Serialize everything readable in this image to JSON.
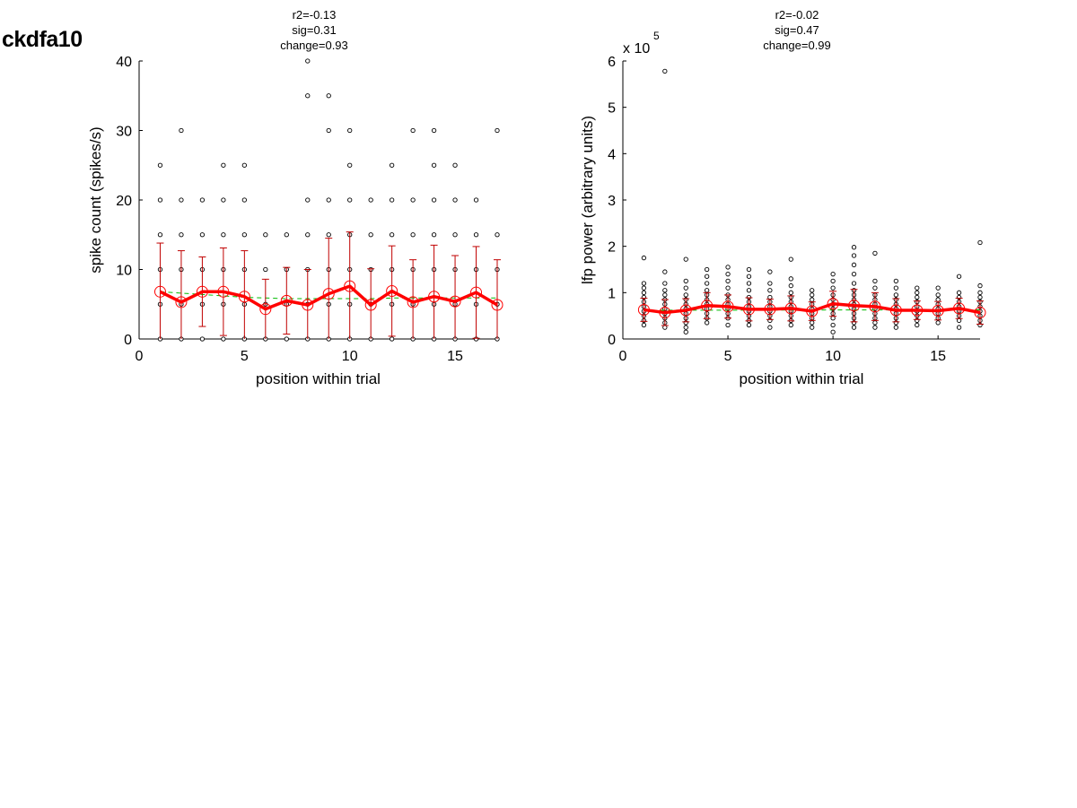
{
  "figure": {
    "title": "ckdfa10"
  },
  "colors": {
    "points": "#000000",
    "mean": "#ff0000",
    "errorbars": "#c00000",
    "fit": "#00bb00"
  },
  "chart_data": [
    {
      "type": "scatter",
      "stats": [
        "r2=-0.13",
        "sig=0.31",
        "change=0.93"
      ],
      "xlabel": "position within trial",
      "ylabel": "spike count (spikes/s)",
      "xlim": [
        0,
        17
      ],
      "ylim": [
        0,
        40
      ],
      "xticks": [
        "0",
        "5",
        "10",
        "15"
      ],
      "xtick_values": [
        0,
        5,
        10,
        15
      ],
      "yticks": [
        "0",
        "10",
        "20",
        "30",
        "40"
      ],
      "ytick_values": [
        0,
        10,
        20,
        30,
        40
      ],
      "y_exponent": "",
      "raw_points": [
        [
          1,
          0
        ],
        [
          1,
          5
        ],
        [
          1,
          10
        ],
        [
          1,
          15
        ],
        [
          1,
          20
        ],
        [
          1,
          25
        ],
        [
          2,
          0
        ],
        [
          2,
          5
        ],
        [
          2,
          10
        ],
        [
          2,
          15
        ],
        [
          2,
          20
        ],
        [
          2,
          30
        ],
        [
          3,
          0
        ],
        [
          3,
          5
        ],
        [
          3,
          10
        ],
        [
          3,
          15
        ],
        [
          3,
          20
        ],
        [
          4,
          0
        ],
        [
          4,
          5
        ],
        [
          4,
          10
        ],
        [
          4,
          15
        ],
        [
          4,
          20
        ],
        [
          4,
          25
        ],
        [
          5,
          0
        ],
        [
          5,
          5
        ],
        [
          5,
          10
        ],
        [
          5,
          15
        ],
        [
          5,
          20
        ],
        [
          5,
          25
        ],
        [
          6,
          0
        ],
        [
          6,
          5
        ],
        [
          6,
          10
        ],
        [
          6,
          15
        ],
        [
          7,
          0
        ],
        [
          7,
          5
        ],
        [
          7,
          10
        ],
        [
          7,
          15
        ],
        [
          8,
          0
        ],
        [
          8,
          5
        ],
        [
          8,
          10
        ],
        [
          8,
          15
        ],
        [
          8,
          20
        ],
        [
          8,
          35
        ],
        [
          8,
          40
        ],
        [
          9,
          0
        ],
        [
          9,
          5
        ],
        [
          9,
          10
        ],
        [
          9,
          15
        ],
        [
          9,
          20
        ],
        [
          9,
          30
        ],
        [
          9,
          35
        ],
        [
          10,
          0
        ],
        [
          10,
          5
        ],
        [
          10,
          10
        ],
        [
          10,
          15
        ],
        [
          10,
          20
        ],
        [
          10,
          25
        ],
        [
          10,
          30
        ],
        [
          11,
          0
        ],
        [
          11,
          5
        ],
        [
          11,
          10
        ],
        [
          11,
          15
        ],
        [
          11,
          20
        ],
        [
          12,
          0
        ],
        [
          12,
          5
        ],
        [
          12,
          10
        ],
        [
          12,
          15
        ],
        [
          12,
          20
        ],
        [
          12,
          25
        ],
        [
          13,
          0
        ],
        [
          13,
          5
        ],
        [
          13,
          10
        ],
        [
          13,
          15
        ],
        [
          13,
          20
        ],
        [
          13,
          30
        ],
        [
          14,
          0
        ],
        [
          14,
          5
        ],
        [
          14,
          10
        ],
        [
          14,
          15
        ],
        [
          14,
          20
        ],
        [
          14,
          25
        ],
        [
          14,
          30
        ],
        [
          15,
          0
        ],
        [
          15,
          5
        ],
        [
          15,
          10
        ],
        [
          15,
          15
        ],
        [
          15,
          20
        ],
        [
          15,
          25
        ],
        [
          16,
          0
        ],
        [
          16,
          5
        ],
        [
          16,
          10
        ],
        [
          16,
          15
        ],
        [
          16,
          20
        ],
        [
          17,
          0
        ],
        [
          17,
          5
        ],
        [
          17,
          10
        ],
        [
          17,
          15
        ],
        [
          17,
          30
        ]
      ],
      "mean_x": [
        1,
        2,
        3,
        4,
        5,
        6,
        7,
        8,
        9,
        10,
        11,
        12,
        13,
        14,
        15,
        16,
        17
      ],
      "mean": [
        6.8,
        5.3,
        6.8,
        6.8,
        6.1,
        4.3,
        5.5,
        4.9,
        6.5,
        7.6,
        4.9,
        6.9,
        5.3,
        6.1,
        5.4,
        6.7,
        4.9
      ],
      "err": [
        7.0,
        7.4,
        5.0,
        6.3,
        6.6,
        4.3,
        4.8,
        5.1,
        8.0,
        7.8,
        5.2,
        6.5,
        6.1,
        7.4,
        6.6,
        6.6,
        6.5
      ],
      "fit": [
        [
          1,
          6.8
        ],
        [
          2,
          6.6
        ],
        [
          3,
          6.4
        ],
        [
          4,
          6.2
        ],
        [
          5,
          6.0
        ],
        [
          6,
          5.9
        ],
        [
          7,
          5.8
        ],
        [
          8,
          5.8
        ],
        [
          9,
          5.8
        ],
        [
          10,
          5.8
        ],
        [
          11,
          5.8
        ],
        [
          12,
          5.9
        ],
        [
          13,
          5.9
        ],
        [
          14,
          5.9
        ],
        [
          15,
          5.9
        ],
        [
          16,
          5.9
        ],
        [
          17,
          5.9
        ]
      ]
    },
    {
      "type": "scatter",
      "stats": [
        "r2=-0.02",
        "sig=0.47",
        "change=0.99"
      ],
      "xlabel": "position within trial",
      "ylabel": "lfp power (arbitrary units)",
      "xlim": [
        0,
        17
      ],
      "ylim": [
        0,
        6
      ],
      "xticks": [
        "0",
        "5",
        "10",
        "15"
      ],
      "xtick_values": [
        0,
        5,
        10,
        15
      ],
      "yticks": [
        "0",
        "1",
        "2",
        "3",
        "4",
        "5",
        "6"
      ],
      "ytick_values": [
        0,
        1,
        2,
        3,
        4,
        5,
        6
      ],
      "y_exponent": "x 10",
      "y_exponent_power": "5",
      "raw_points": [
        [
          1,
          1.75
        ],
        [
          1,
          1.2
        ],
        [
          1,
          1.1
        ],
        [
          1,
          1.0
        ],
        [
          1,
          0.9
        ],
        [
          1,
          0.8
        ],
        [
          1,
          0.7
        ],
        [
          1,
          0.6
        ],
        [
          1,
          0.5
        ],
        [
          1,
          0.4
        ],
        [
          1,
          0.3
        ],
        [
          2,
          5.78
        ],
        [
          2,
          1.45
        ],
        [
          2,
          1.2
        ],
        [
          2,
          1.05
        ],
        [
          2,
          0.95
        ],
        [
          2,
          0.85
        ],
        [
          2,
          0.75
        ],
        [
          2,
          0.65
        ],
        [
          2,
          0.55
        ],
        [
          2,
          0.45
        ],
        [
          2,
          0.35
        ],
        [
          2,
          0.25
        ],
        [
          3,
          1.72
        ],
        [
          3,
          1.25
        ],
        [
          3,
          1.1
        ],
        [
          3,
          0.95
        ],
        [
          3,
          0.85
        ],
        [
          3,
          0.75
        ],
        [
          3,
          0.65
        ],
        [
          3,
          0.55
        ],
        [
          3,
          0.45
        ],
        [
          3,
          0.35
        ],
        [
          3,
          0.25
        ],
        [
          3,
          0.15
        ],
        [
          4,
          1.5
        ],
        [
          4,
          1.35
        ],
        [
          4,
          1.2
        ],
        [
          4,
          1.05
        ],
        [
          4,
          0.95
        ],
        [
          4,
          0.85
        ],
        [
          4,
          0.75
        ],
        [
          4,
          0.65
        ],
        [
          4,
          0.55
        ],
        [
          4,
          0.45
        ],
        [
          4,
          0.35
        ],
        [
          5,
          1.55
        ],
        [
          5,
          1.4
        ],
        [
          5,
          1.25
        ],
        [
          5,
          1.1
        ],
        [
          5,
          0.95
        ],
        [
          5,
          0.85
        ],
        [
          5,
          0.75
        ],
        [
          5,
          0.65
        ],
        [
          5,
          0.55
        ],
        [
          5,
          0.45
        ],
        [
          5,
          0.3
        ],
        [
          6,
          1.5
        ],
        [
          6,
          1.35
        ],
        [
          6,
          1.2
        ],
        [
          6,
          1.05
        ],
        [
          6,
          0.9
        ],
        [
          6,
          0.8
        ],
        [
          6,
          0.7
        ],
        [
          6,
          0.6
        ],
        [
          6,
          0.5
        ],
        [
          6,
          0.4
        ],
        [
          6,
          0.3
        ],
        [
          7,
          1.45
        ],
        [
          7,
          1.2
        ],
        [
          7,
          1.05
        ],
        [
          7,
          0.9
        ],
        [
          7,
          0.8
        ],
        [
          7,
          0.7
        ],
        [
          7,
          0.6
        ],
        [
          7,
          0.5
        ],
        [
          7,
          0.4
        ],
        [
          7,
          0.25
        ],
        [
          8,
          1.72
        ],
        [
          8,
          1.3
        ],
        [
          8,
          1.15
        ],
        [
          8,
          1.0
        ],
        [
          8,
          0.9
        ],
        [
          8,
          0.8
        ],
        [
          8,
          0.7
        ],
        [
          8,
          0.6
        ],
        [
          8,
          0.5
        ],
        [
          8,
          0.4
        ],
        [
          8,
          0.3
        ],
        [
          9,
          1.05
        ],
        [
          9,
          0.95
        ],
        [
          9,
          0.85
        ],
        [
          9,
          0.75
        ],
        [
          9,
          0.65
        ],
        [
          9,
          0.55
        ],
        [
          9,
          0.45
        ],
        [
          9,
          0.35
        ],
        [
          9,
          0.25
        ],
        [
          10,
          1.4
        ],
        [
          10,
          1.25
        ],
        [
          10,
          1.1
        ],
        [
          10,
          0.95
        ],
        [
          10,
          0.85
        ],
        [
          10,
          0.75
        ],
        [
          10,
          0.65
        ],
        [
          10,
          0.55
        ],
        [
          10,
          0.45
        ],
        [
          10,
          0.3
        ],
        [
          10,
          0.15
        ],
        [
          11,
          1.98
        ],
        [
          11,
          1.8
        ],
        [
          11,
          1.6
        ],
        [
          11,
          1.4
        ],
        [
          11,
          1.2
        ],
        [
          11,
          1.05
        ],
        [
          11,
          0.95
        ],
        [
          11,
          0.85
        ],
        [
          11,
          0.75
        ],
        [
          11,
          0.65
        ],
        [
          11,
          0.55
        ],
        [
          11,
          0.45
        ],
        [
          11,
          0.35
        ],
        [
          11,
          0.25
        ],
        [
          12,
          1.85
        ],
        [
          12,
          1.25
        ],
        [
          12,
          1.1
        ],
        [
          12,
          0.95
        ],
        [
          12,
          0.85
        ],
        [
          12,
          0.75
        ],
        [
          12,
          0.65
        ],
        [
          12,
          0.55
        ],
        [
          12,
          0.45
        ],
        [
          12,
          0.35
        ],
        [
          12,
          0.25
        ],
        [
          13,
          1.25
        ],
        [
          13,
          1.1
        ],
        [
          13,
          0.95
        ],
        [
          13,
          0.85
        ],
        [
          13,
          0.75
        ],
        [
          13,
          0.65
        ],
        [
          13,
          0.55
        ],
        [
          13,
          0.45
        ],
        [
          13,
          0.35
        ],
        [
          13,
          0.25
        ],
        [
          14,
          1.1
        ],
        [
          14,
          1.0
        ],
        [
          14,
          0.9
        ],
        [
          14,
          0.8
        ],
        [
          14,
          0.7
        ],
        [
          14,
          0.6
        ],
        [
          14,
          0.5
        ],
        [
          14,
          0.4
        ],
        [
          14,
          0.3
        ],
        [
          15,
          1.1
        ],
        [
          15,
          0.95
        ],
        [
          15,
          0.85
        ],
        [
          15,
          0.75
        ],
        [
          15,
          0.65
        ],
        [
          15,
          0.55
        ],
        [
          15,
          0.45
        ],
        [
          15,
          0.35
        ],
        [
          16,
          1.35
        ],
        [
          16,
          1.0
        ],
        [
          16,
          0.9
        ],
        [
          16,
          0.8
        ],
        [
          16,
          0.7
        ],
        [
          16,
          0.6
        ],
        [
          16,
          0.5
        ],
        [
          16,
          0.4
        ],
        [
          16,
          0.25
        ],
        [
          17,
          2.08
        ],
        [
          17,
          1.15
        ],
        [
          17,
          1.0
        ],
        [
          17,
          0.9
        ],
        [
          17,
          0.8
        ],
        [
          17,
          0.7
        ],
        [
          17,
          0.6
        ],
        [
          17,
          0.5
        ],
        [
          17,
          0.4
        ],
        [
          17,
          0.3
        ]
      ],
      "mean_x": [
        1,
        2,
        3,
        4,
        5,
        6,
        7,
        8,
        9,
        10,
        11,
        12,
        13,
        14,
        15,
        16,
        17
      ],
      "mean": [
        0.63,
        0.57,
        0.62,
        0.72,
        0.7,
        0.64,
        0.64,
        0.66,
        0.6,
        0.76,
        0.72,
        0.7,
        0.62,
        0.62,
        0.61,
        0.66,
        0.57
      ],
      "err": [
        0.25,
        0.28,
        0.25,
        0.28,
        0.25,
        0.25,
        0.22,
        0.27,
        0.2,
        0.27,
        0.35,
        0.3,
        0.25,
        0.2,
        0.2,
        0.22,
        0.25
      ],
      "fit": [
        [
          1,
          0.62
        ],
        [
          17,
          0.63
        ]
      ]
    }
  ]
}
